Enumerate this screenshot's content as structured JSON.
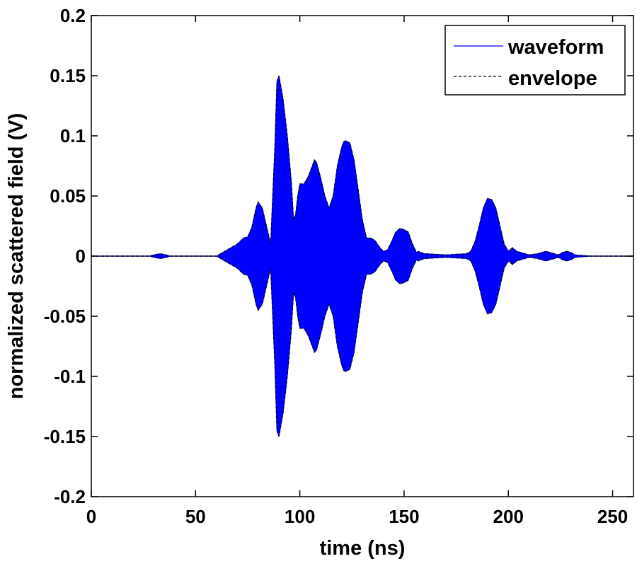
{
  "chart_data": {
    "type": "line",
    "title": "",
    "xlabel": "time (ns)",
    "ylabel": "normalized scattered field (V)",
    "xlim": [
      0,
      260
    ],
    "ylim": [
      -0.2,
      0.2
    ],
    "xticks": [
      0,
      50,
      100,
      150,
      200,
      250
    ],
    "xtick_labels": [
      "0",
      "50",
      "100",
      "150",
      "200",
      "250"
    ],
    "yticks": [
      0.2,
      0.15,
      0.1,
      0.05,
      0,
      -0.05,
      -0.1,
      -0.15,
      -0.2
    ],
    "ytick_labels": [
      "0.2",
      "0.15",
      "0.1",
      "0.05",
      "0",
      "-0.05",
      "-0.1",
      "-0.15",
      "-0.2"
    ],
    "grid": false,
    "legend_position": "top-right",
    "series": [
      {
        "name": "waveform",
        "color": "#0000ff",
        "style": "solid",
        "note_symmetric": true
      },
      {
        "name": "envelope",
        "color": "#000000",
        "style": "dashed"
      }
    ],
    "envelope": {
      "x": [
        0,
        28,
        30,
        33,
        36,
        38,
        60,
        63,
        66,
        70,
        73,
        75,
        77,
        79,
        80,
        82,
        84,
        86,
        88,
        89,
        90,
        92,
        94,
        96,
        97,
        98,
        99,
        100,
        102,
        104,
        106,
        107,
        108,
        110,
        112,
        114,
        116,
        118,
        120,
        121,
        122,
        124,
        126,
        128,
        130,
        132,
        134,
        136,
        138,
        140,
        142,
        144,
        146,
        148,
        150,
        152,
        154,
        156,
        157,
        158,
        160,
        170,
        180,
        182,
        184,
        186,
        188,
        190,
        192,
        194,
        196,
        198,
        200,
        202,
        204,
        210,
        214,
        216,
        218,
        220,
        224,
        226,
        228,
        230,
        232,
        240,
        260
      ],
      "y": [
        0,
        0,
        0.001,
        0.002,
        0.001,
        0,
        0,
        0.003,
        0.006,
        0.01,
        0.015,
        0.016,
        0.024,
        0.04,
        0.045,
        0.04,
        0.025,
        0.01,
        0.09,
        0.145,
        0.15,
        0.13,
        0.1,
        0.06,
        0.03,
        0.035,
        0.05,
        0.06,
        0.06,
        0.066,
        0.075,
        0.08,
        0.078,
        0.065,
        0.05,
        0.04,
        0.05,
        0.075,
        0.09,
        0.095,
        0.096,
        0.094,
        0.08,
        0.055,
        0.03,
        0.015,
        0.015,
        0.013,
        0.008,
        0.004,
        0.005,
        0.012,
        0.02,
        0.023,
        0.022,
        0.02,
        0.01,
        0.003,
        0.004,
        0.003,
        0.002,
        0.001,
        0.002,
        0.004,
        0.012,
        0.025,
        0.04,
        0.048,
        0.047,
        0.04,
        0.025,
        0.01,
        0.004,
        0.007,
        0.004,
        0.001,
        0.002,
        0.003,
        0.004,
        0.003,
        0.001,
        0.003,
        0.004,
        0.003,
        0.001,
        0,
        0
      ]
    }
  }
}
